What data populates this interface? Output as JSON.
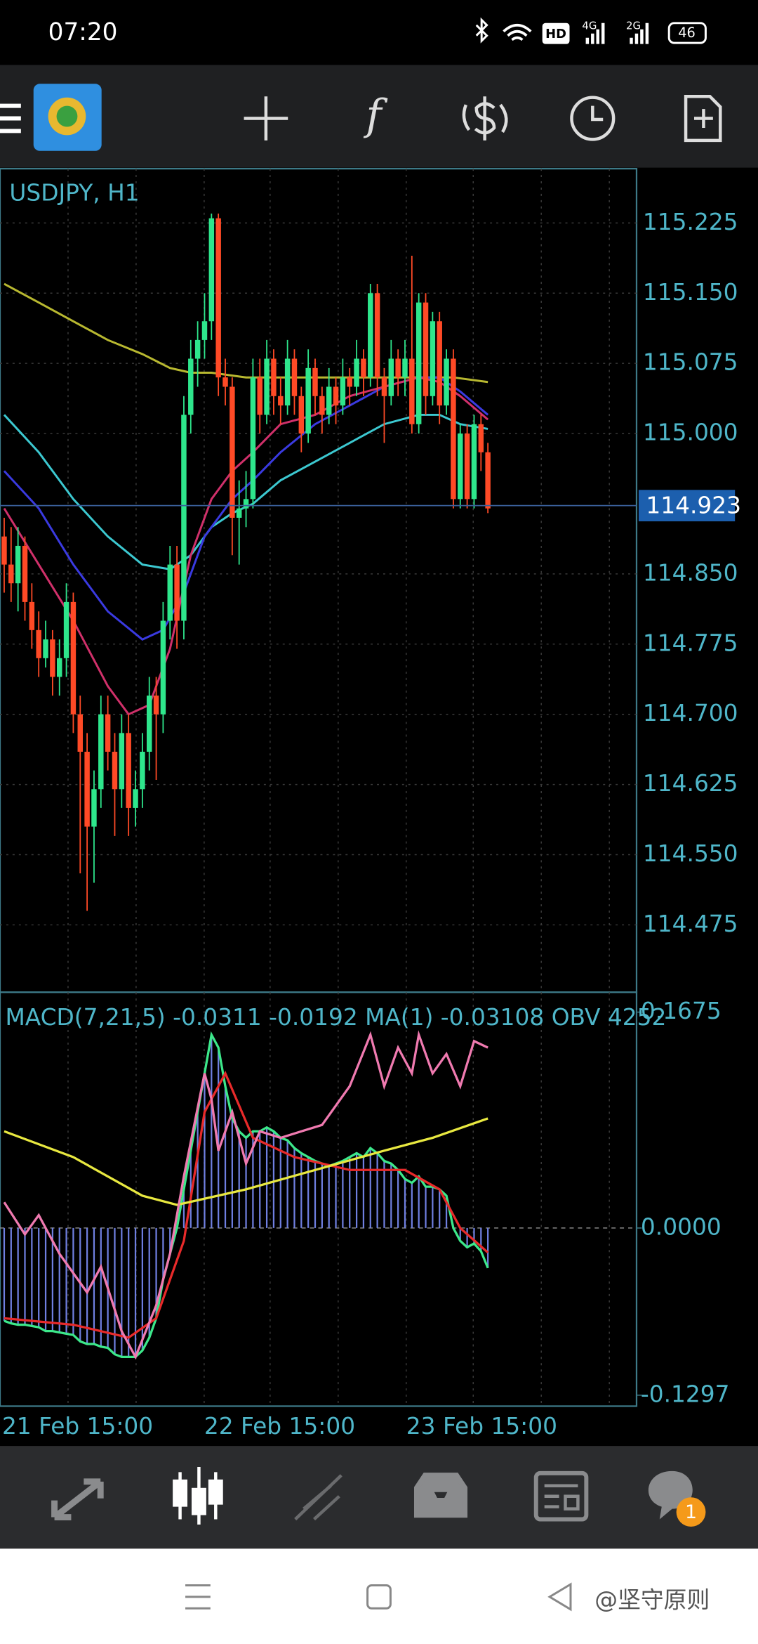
{
  "status_bar": {
    "time": "07:20",
    "hd": "HD",
    "net1": "4G",
    "net2": "2G",
    "battery": "46"
  },
  "toolbar": {
    "function_icon": "f"
  },
  "chart_data": {
    "type": "candlestick",
    "title": "USDJPY, H1",
    "ylim": [
      114.403,
      115.283
    ],
    "yticks": [
      115.225,
      {
        "value": 115.15,
        "label": "115.150"
      },
      115.075,
      {
        "value": 115,
        "label": "115.000"
      },
      {
        "value": 114.85,
        "label": "114.850"
      },
      114.775,
      {
        "value": 114.7,
        "label": "114.700"
      },
      114.625,
      {
        "value": 114.55,
        "label": "114.550"
      },
      114.475
    ],
    "grid": true,
    "current_price": 114.923,
    "x_labels": [
      "21 Feb 15:00",
      "22 Feb 15:00",
      "23 Feb 15:00"
    ],
    "up_color": "#2ee68c",
    "down_color": "#ff4a26",
    "candles": [
      [
        114.89,
        114.91,
        114.83,
        114.86
      ],
      [
        114.86,
        114.9,
        114.82,
        114.84
      ],
      [
        114.84,
        114.9,
        114.81,
        114.88
      ],
      [
        114.88,
        114.89,
        114.8,
        114.82
      ],
      [
        114.82,
        114.84,
        114.77,
        114.79
      ],
      [
        114.79,
        114.81,
        114.74,
        114.76
      ],
      [
        114.76,
        114.8,
        114.75,
        114.78
      ],
      [
        114.78,
        114.79,
        114.72,
        114.74
      ],
      [
        114.74,
        114.78,
        114.72,
        114.76
      ],
      [
        114.76,
        114.84,
        114.74,
        114.82
      ],
      [
        114.82,
        114.83,
        114.68,
        114.7
      ],
      [
        114.7,
        114.72,
        114.53,
        114.66
      ],
      [
        114.66,
        114.68,
        114.49,
        114.58
      ],
      [
        114.58,
        114.64,
        114.52,
        114.62
      ],
      [
        114.62,
        114.72,
        114.6,
        114.7
      ],
      [
        114.7,
        114.72,
        114.64,
        114.66
      ],
      [
        114.66,
        114.68,
        114.57,
        114.62
      ],
      [
        114.62,
        114.7,
        114.6,
        114.68
      ],
      [
        114.68,
        114.7,
        114.57,
        114.6
      ],
      [
        114.6,
        114.64,
        114.58,
        114.62
      ],
      [
        114.62,
        114.68,
        114.6,
        114.66
      ],
      [
        114.66,
        114.74,
        114.64,
        114.72
      ],
      [
        114.72,
        114.74,
        114.63,
        114.7
      ],
      [
        114.7,
        114.82,
        114.68,
        114.8
      ],
      [
        114.8,
        114.88,
        114.78,
        114.86
      ],
      [
        114.86,
        114.88,
        114.77,
        114.8
      ],
      [
        114.8,
        115.04,
        114.78,
        115.02
      ],
      [
        115.02,
        115.1,
        115.0,
        115.08
      ],
      [
        115.08,
        115.12,
        115.05,
        115.1
      ],
      [
        115.1,
        115.15,
        115.08,
        115.12
      ],
      [
        115.12,
        115.235,
        115.1,
        115.23
      ],
      [
        115.23,
        115.235,
        115.04,
        115.06
      ],
      [
        115.06,
        115.08,
        115.03,
        115.05
      ],
      [
        115.05,
        115.06,
        114.87,
        114.91
      ],
      [
        114.91,
        114.95,
        114.86,
        114.92
      ],
      [
        114.92,
        114.96,
        114.9,
        114.93
      ],
      [
        114.93,
        115.08,
        114.92,
        115.06
      ],
      [
        115.06,
        115.08,
        115.0,
        115.02
      ],
      [
        115.02,
        115.1,
        115.01,
        115.08
      ],
      [
        115.08,
        115.09,
        115.02,
        115.04
      ],
      [
        115.04,
        115.06,
        115.01,
        115.03
      ],
      [
        115.03,
        115.1,
        115.02,
        115.08
      ],
      [
        115.08,
        115.09,
        115.02,
        115.04
      ],
      [
        115.04,
        115.05,
        114.98,
        115.0
      ],
      [
        115.0,
        115.09,
        114.99,
        115.07
      ],
      [
        115.07,
        115.08,
        115.02,
        115.04
      ],
      [
        115.04,
        115.05,
        115.0,
        115.02
      ],
      [
        115.02,
        115.07,
        115.01,
        115.05
      ],
      [
        115.05,
        115.06,
        115.01,
        115.03
      ],
      [
        115.03,
        115.08,
        115.02,
        115.06
      ],
      [
        115.06,
        115.07,
        115.03,
        115.05
      ],
      [
        115.05,
        115.1,
        115.04,
        115.08
      ],
      [
        115.08,
        115.09,
        115.04,
        115.06
      ],
      [
        115.06,
        115.16,
        115.05,
        115.15
      ],
      [
        115.15,
        115.16,
        115.04,
        115.06
      ],
      [
        115.06,
        115.07,
        114.99,
        115.04
      ],
      [
        115.04,
        115.1,
        115.03,
        115.08
      ],
      [
        115.08,
        115.09,
        115.04,
        115.06
      ],
      [
        115.06,
        115.1,
        115.04,
        115.08
      ],
      [
        115.08,
        115.19,
        115.0,
        115.01
      ],
      [
        115.01,
        115.15,
        115.0,
        115.14
      ],
      [
        115.14,
        115.15,
        115.02,
        115.04
      ],
      [
        115.04,
        115.13,
        115.03,
        115.12
      ],
      [
        115.12,
        115.13,
        115.01,
        115.03
      ],
      [
        115.03,
        115.09,
        115.02,
        115.08
      ],
      [
        115.08,
        115.09,
        114.92,
        114.93
      ],
      [
        114.93,
        115.01,
        114.92,
        115.0
      ],
      [
        115.0,
        115.01,
        114.92,
        114.93
      ],
      [
        114.93,
        115.02,
        114.92,
        115.01
      ],
      [
        115.01,
        115.02,
        114.96,
        114.98
      ],
      [
        114.98,
        114.99,
        114.915,
        114.92
      ]
    ],
    "moving_averages": [
      {
        "color": "#b8b830",
        "x": [
          0,
          5,
          10,
          15,
          20,
          24,
          27,
          30,
          35,
          40,
          50,
          60,
          65,
          70
        ],
        "values": [
          115.16,
          115.14,
          115.12,
          115.1,
          115.085,
          115.07,
          115.065,
          115.065,
          115.06,
          115.06,
          115.06,
          115.06,
          115.06,
          115.055
        ]
      },
      {
        "color": "#3cc8d0",
        "x": [
          0,
          5,
          10,
          15,
          20,
          24,
          27,
          30,
          33,
          36,
          40,
          45,
          50,
          55,
          60,
          63,
          66,
          70
        ],
        "values": [
          115.02,
          114.98,
          114.93,
          114.89,
          114.86,
          114.855,
          114.87,
          114.9,
          114.915,
          114.925,
          114.95,
          114.97,
          114.99,
          115.01,
          115.02,
          115.02,
          115.01,
          115.005
        ]
      },
      {
        "color": "#3a3ae0",
        "x": [
          0,
          5,
          10,
          15,
          20,
          23,
          26,
          29,
          33,
          36,
          40,
          45,
          50,
          55,
          60,
          63,
          66,
          70
        ],
        "values": [
          114.96,
          114.92,
          114.86,
          114.81,
          114.78,
          114.79,
          114.83,
          114.89,
          114.93,
          114.95,
          114.98,
          115.01,
          115.03,
          115.05,
          115.06,
          115.06,
          115.045,
          115.02
        ]
      },
      {
        "color": "#d0306a",
        "x": [
          0,
          5,
          10,
          15,
          18,
          21,
          24,
          27,
          30,
          33,
          36,
          40,
          45,
          50,
          55,
          60,
          63,
          66,
          70
        ],
        "values": [
          114.92,
          114.86,
          114.8,
          114.73,
          114.7,
          114.71,
          114.77,
          114.87,
          114.93,
          114.96,
          114.98,
          115.01,
          115.02,
          115.04,
          115.05,
          115.06,
          115.055,
          115.04,
          115.015
        ]
      }
    ]
  },
  "macd": {
    "type": "histogram",
    "label": "MACD(7,21,5) -0.0311 -0.0192 MA(1) -0.03108 OBV 4252",
    "ylim": [
      -0.1382,
      0.1829
    ],
    "yticks": [
      0.1675,
      {
        "value": 0,
        "label": "0.0000"
      },
      -0.1297
    ],
    "hist_color": "#6f7fe0",
    "values": [
      -0.072,
      -0.074,
      -0.075,
      -0.075,
      -0.076,
      -0.077,
      -0.08,
      -0.08,
      -0.081,
      -0.082,
      -0.083,
      -0.088,
      -0.09,
      -0.09,
      -0.092,
      -0.093,
      -0.098,
      -0.1,
      -0.1,
      -0.1,
      -0.095,
      -0.085,
      -0.07,
      -0.04,
      -0.02,
      0.0,
      0.03,
      0.06,
      0.09,
      0.12,
      0.15,
      0.14,
      0.11,
      0.085,
      0.075,
      0.07,
      0.075,
      0.075,
      0.078,
      0.075,
      0.07,
      0.068,
      0.062,
      0.058,
      0.055,
      0.052,
      0.05,
      0.048,
      0.05,
      0.052,
      0.055,
      0.058,
      0.055,
      0.062,
      0.058,
      0.052,
      0.05,
      0.045,
      0.038,
      0.035,
      0.04,
      0.032,
      0.032,
      0.03,
      0.025,
      0.0,
      -0.01,
      -0.015,
      -0.012,
      -0.018,
      -0.031
    ],
    "main_color": "#3ce88a",
    "lines": [
      {
        "color": "#e82a2a",
        "x": [
          0,
          10,
          18,
          22,
          26,
          29,
          32,
          36,
          42,
          50,
          58,
          63,
          66,
          70
        ],
        "values": [
          -0.07,
          -0.075,
          -0.085,
          -0.07,
          -0.01,
          0.09,
          0.12,
          0.07,
          0.055,
          0.045,
          0.045,
          0.03,
          0.0,
          -0.019
        ]
      },
      {
        "color": "#e8e840",
        "x": [
          0,
          10,
          20,
          25,
          35,
          45,
          55,
          62,
          70
        ],
        "values": [
          0.075,
          0.055,
          0.025,
          0.018,
          0.03,
          0.045,
          0.06,
          0.07,
          0.085
        ]
      },
      {
        "color": "#f07ab0",
        "x": [
          0,
          3,
          5,
          8,
          12,
          14,
          17,
          19,
          22,
          24,
          26,
          29,
          30,
          31,
          33,
          35,
          37,
          40,
          43,
          46,
          50,
          53,
          55,
          57,
          59,
          60,
          62,
          64,
          66,
          68,
          70
        ],
        "values": [
          0.02,
          -0.005,
          0.01,
          -0.02,
          -0.05,
          -0.03,
          -0.08,
          -0.1,
          -0.06,
          -0.02,
          0.04,
          0.12,
          0.1,
          0.06,
          0.09,
          0.05,
          0.075,
          0.07,
          0.075,
          0.08,
          0.11,
          0.15,
          0.11,
          0.14,
          0.12,
          0.15,
          0.12,
          0.135,
          0.11,
          0.145,
          0.14
        ]
      }
    ]
  },
  "bottom_nav": {
    "badge": "1"
  },
  "system_nav": {
    "watermark": "@坚守原则"
  }
}
